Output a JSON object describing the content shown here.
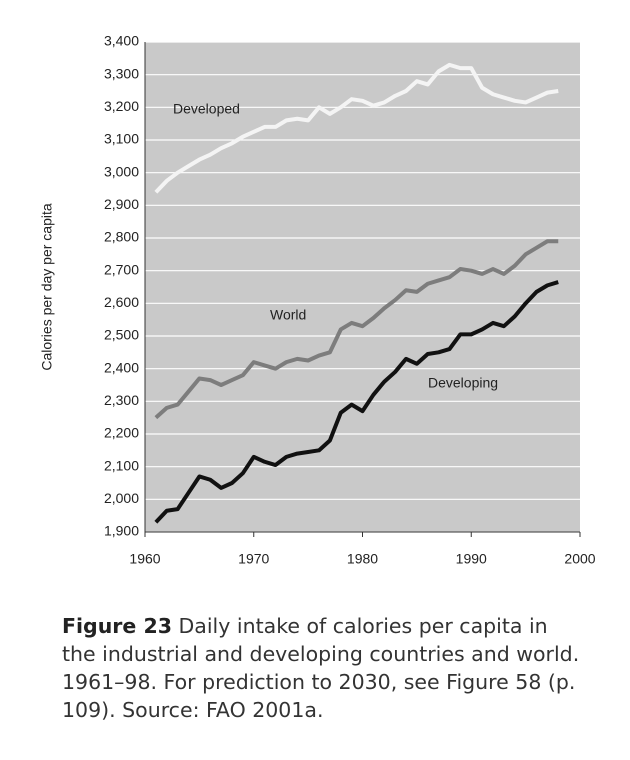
{
  "chart_data": {
    "type": "line",
    "y_label": "Calories per day per capita",
    "x": [
      1961,
      1962,
      1963,
      1964,
      1965,
      1966,
      1967,
      1968,
      1969,
      1970,
      1971,
      1972,
      1973,
      1974,
      1975,
      1976,
      1977,
      1978,
      1979,
      1980,
      1981,
      1982,
      1983,
      1984,
      1985,
      1986,
      1987,
      1988,
      1989,
      1990,
      1991,
      1992,
      1993,
      1994,
      1995,
      1996,
      1997,
      1998
    ],
    "series": [
      {
        "name": "Developed",
        "color": "#f4f4f4",
        "values": [
          2940,
          2975,
          3000,
          3020,
          3040,
          3055,
          3075,
          3090,
          3110,
          3125,
          3140,
          3140,
          3160,
          3165,
          3160,
          3200,
          3180,
          3200,
          3225,
          3220,
          3205,
          3215,
          3235,
          3250,
          3280,
          3270,
          3310,
          3330,
          3320,
          3320,
          3260,
          3240,
          3230,
          3220,
          3215,
          3230,
          3245,
          3250
        ]
      },
      {
        "name": "World",
        "color": "#7d7d7d",
        "values": [
          2250,
          2280,
          2290,
          2330,
          2370,
          2365,
          2350,
          2365,
          2380,
          2420,
          2410,
          2400,
          2420,
          2430,
          2425,
          2440,
          2450,
          2520,
          2540,
          2530,
          2555,
          2585,
          2610,
          2640,
          2635,
          2660,
          2670,
          2680,
          2705,
          2700,
          2690,
          2705,
          2690,
          2715,
          2750,
          2770,
          2790,
          2790
        ]
      },
      {
        "name": "Developing",
        "color": "#111111",
        "values": [
          1930,
          1965,
          1970,
          2020,
          2070,
          2060,
          2035,
          2050,
          2080,
          2130,
          2115,
          2105,
          2130,
          2140,
          2145,
          2150,
          2180,
          2265,
          2290,
          2270,
          2320,
          2360,
          2390,
          2430,
          2415,
          2445,
          2450,
          2460,
          2505,
          2505,
          2520,
          2540,
          2530,
          2560,
          2600,
          2635,
          2655,
          2665
        ]
      }
    ],
    "xlim": [
      1960,
      2000
    ],
    "xticks": [
      1960,
      1970,
      1980,
      1990,
      2000
    ],
    "ylim": [
      1900,
      3400
    ],
    "yticks": [
      {
        "value": 1900,
        "label": "1,900"
      },
      {
        "value": 2000,
        "label": "2,000"
      },
      {
        "value": 2100,
        "label": "2,100"
      },
      {
        "value": 2200,
        "label": "2,200"
      },
      {
        "value": 2300,
        "label": "2,300"
      },
      {
        "value": 2400,
        "label": "2,400"
      },
      {
        "value": 2500,
        "label": "2,500"
      },
      {
        "value": 2600,
        "label": "2,600"
      },
      {
        "value": 2700,
        "label": "2,700"
      },
      {
        "value": 2800,
        "label": "2,800"
      },
      {
        "value": 2900,
        "label": "2,900"
      },
      {
        "value": 3000,
        "label": "3,000"
      },
      {
        "value": 3100,
        "label": "3,100"
      },
      {
        "value": 3200,
        "label": "3,200"
      },
      {
        "value": 3300,
        "label": "3,300"
      },
      {
        "value": 3400,
        "label": "3,400"
      }
    ],
    "grid": true,
    "background": "#c9c9c9"
  },
  "caption": {
    "label": "Figure 23",
    "text": "Daily intake of calories per capita in the industrial and developing countries and world. 1961–98. For prediction to 2030, see Figure 58 (p. 109). Source: FAO 2001a."
  }
}
